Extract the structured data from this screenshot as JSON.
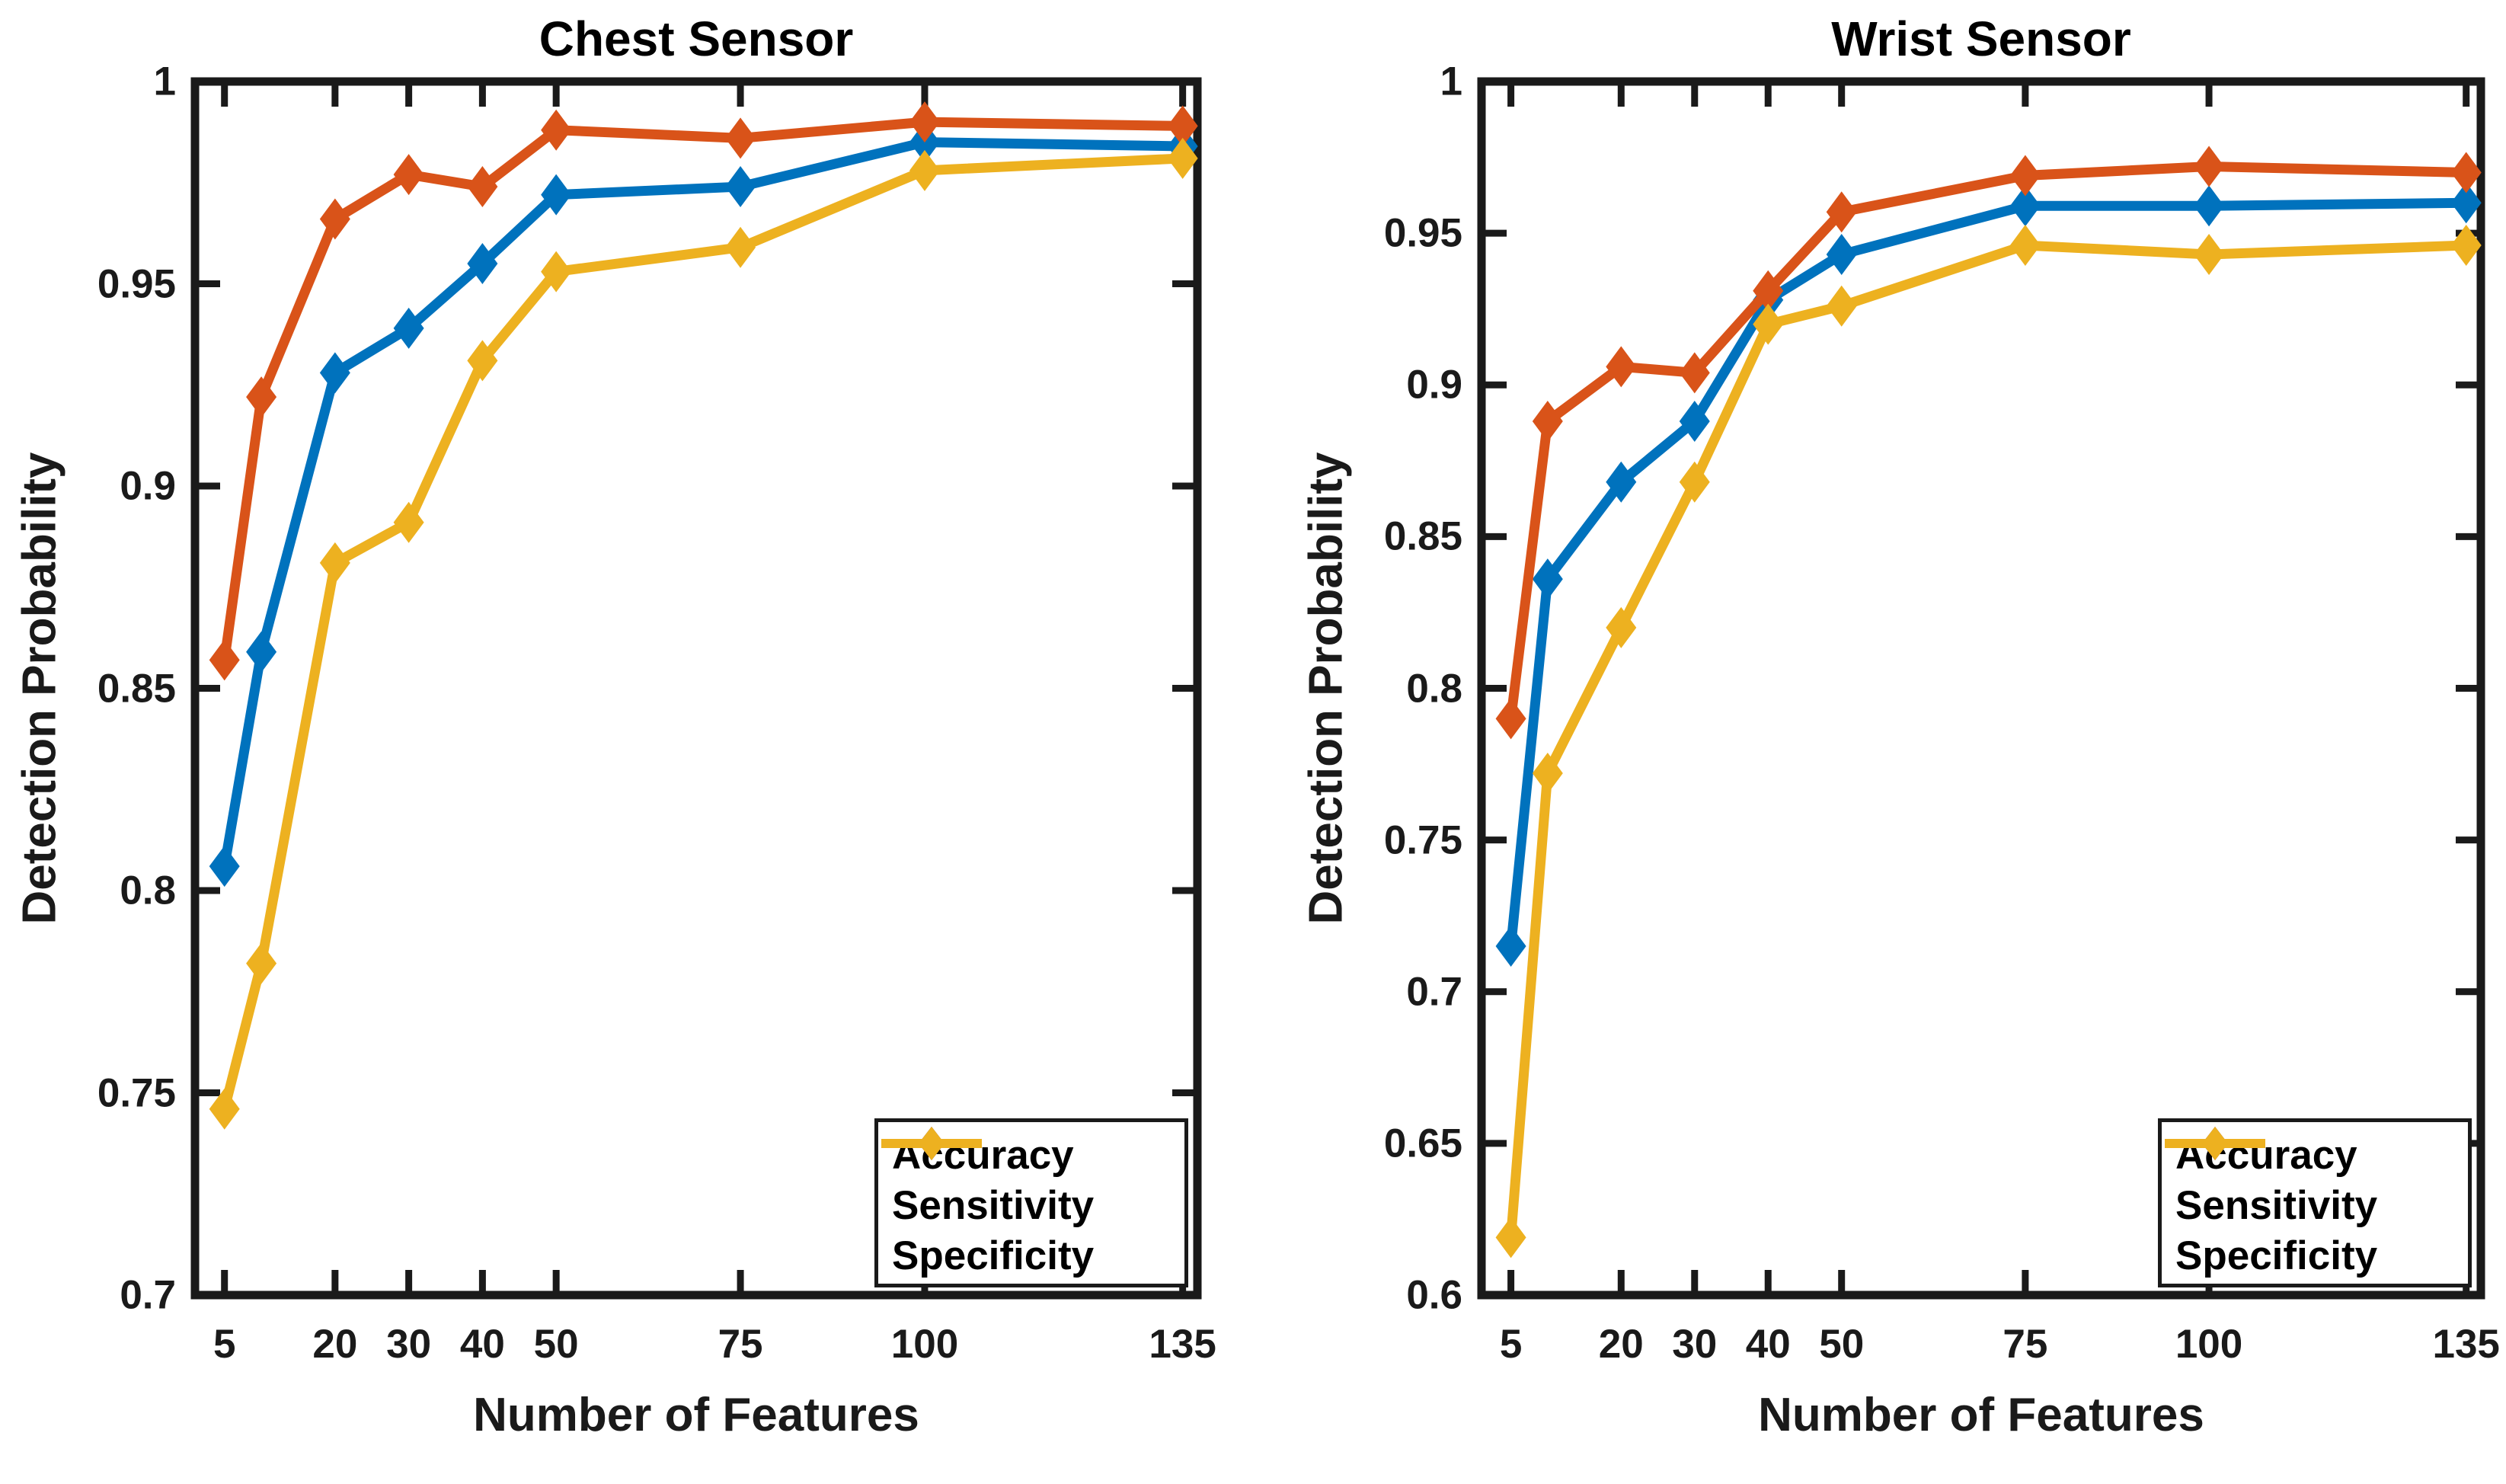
{
  "figure": {
    "background": "#ffffff",
    "axis_color": "#1a1a1a",
    "text_color": "#000000"
  },
  "chart_data": [
    {
      "type": "line",
      "title": "Chest Sensor",
      "xlabel": "Number of Features",
      "ylabel": "Detection Probability",
      "grid": false,
      "legend_position": "bottom-right",
      "marker": "diamond",
      "x": [
        5,
        10,
        20,
        30,
        40,
        50,
        75,
        100,
        135
      ],
      "xticks": [
        5,
        20,
        30,
        40,
        50,
        75,
        100,
        135
      ],
      "xtick_labels": [
        "5",
        "20",
        "30",
        "40",
        "50",
        "75",
        "100",
        "135"
      ],
      "xlim": [
        1,
        137
      ],
      "ylim": [
        0.7,
        1.0
      ],
      "yticks": [
        0.7,
        0.75,
        0.8,
        0.85,
        0.9,
        0.95,
        1
      ],
      "ytick_labels": [
        "0.7",
        "0.75",
        "0.8",
        "0.85",
        "0.9",
        "0.95",
        "1"
      ],
      "series": [
        {
          "name": "Accuracy",
          "color": "#0072BD",
          "values": [
            0.806,
            0.859,
            0.928,
            0.939,
            0.955,
            0.972,
            0.974,
            0.985,
            0.984
          ]
        },
        {
          "name": "Sensitivity",
          "color": "#D95319",
          "values": [
            0.857,
            0.922,
            0.966,
            0.977,
            0.974,
            0.988,
            0.986,
            0.99,
            0.989
          ]
        },
        {
          "name": "Specificity",
          "color": "#EDB120",
          "values": [
            0.746,
            0.782,
            0.881,
            0.891,
            0.931,
            0.953,
            0.959,
            0.978,
            0.981
          ]
        }
      ]
    },
    {
      "type": "line",
      "title": "Wrist Sensor",
      "xlabel": "Number of Features",
      "ylabel": "Detection Probability",
      "grid": false,
      "legend_position": "bottom-right",
      "marker": "diamond",
      "x": [
        5,
        10,
        20,
        30,
        40,
        50,
        75,
        100,
        135
      ],
      "xticks": [
        5,
        20,
        30,
        40,
        50,
        75,
        100,
        135
      ],
      "xtick_labels": [
        "5",
        "20",
        "30",
        "40",
        "50",
        "75",
        "100",
        "135"
      ],
      "xlim": [
        1,
        137
      ],
      "ylim": [
        0.6,
        1.0
      ],
      "yticks": [
        0.6,
        0.65,
        0.7,
        0.75,
        0.8,
        0.85,
        0.9,
        0.95,
        1
      ],
      "ytick_labels": [
        "0.6",
        "0.65",
        "0.7",
        "0.75",
        "0.8",
        "0.85",
        "0.9",
        "0.95",
        "1"
      ],
      "series": [
        {
          "name": "Accuracy",
          "color": "#0072BD",
          "values": [
            0.715,
            0.836,
            0.868,
            0.888,
            0.928,
            0.943,
            0.959,
            0.959,
            0.96
          ]
        },
        {
          "name": "Sensitivity",
          "color": "#D95319",
          "values": [
            0.79,
            0.888,
            0.906,
            0.904,
            0.931,
            0.957,
            0.969,
            0.972,
            0.97
          ]
        },
        {
          "name": "Specificity",
          "color": "#EDB120",
          "values": [
            0.619,
            0.772,
            0.82,
            0.868,
            0.92,
            0.926,
            0.946,
            0.943,
            0.946
          ]
        }
      ]
    }
  ]
}
